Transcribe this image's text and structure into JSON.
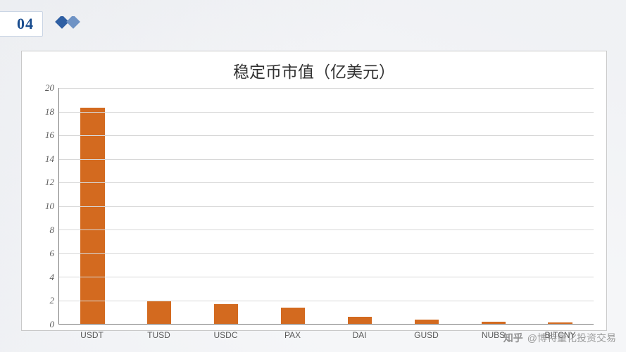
{
  "header": {
    "section_number": "04",
    "number_color": "#1a4d8f",
    "diamond_colors": [
      "#2f5fa3",
      "#6f93c5"
    ]
  },
  "chart": {
    "type": "bar",
    "title": "稳定币市值（亿美元）",
    "title_fontsize": 23,
    "title_color": "#333333",
    "background_color": "#ffffff",
    "border_color": "#c9c9c9",
    "categories": [
      "USDT",
      "TUSD",
      "USDC",
      "PAX",
      "DAI",
      "GUSD",
      "NUBS",
      "BITCNY"
    ],
    "values": [
      18.3,
      1.9,
      1.7,
      1.4,
      0.6,
      0.35,
      0.18,
      0.12
    ],
    "bar_color": "#d36a1f",
    "bar_width": 0.36,
    "ylim": [
      0,
      20
    ],
    "ytick_step": 2,
    "yticks": [
      0,
      2,
      4,
      6,
      8,
      10,
      12,
      14,
      16,
      18,
      20
    ],
    "grid_color": "#d8d8d8",
    "axis_color": "#7a7a7a",
    "label_fontsize": 12,
    "ylabel_color": "#5b5b5b",
    "ylabel_font_style": "italic"
  },
  "watermark": {
    "prefix": "知乎",
    "text": "@博特量化投资交易",
    "color": "rgba(120,120,120,0.72)"
  }
}
